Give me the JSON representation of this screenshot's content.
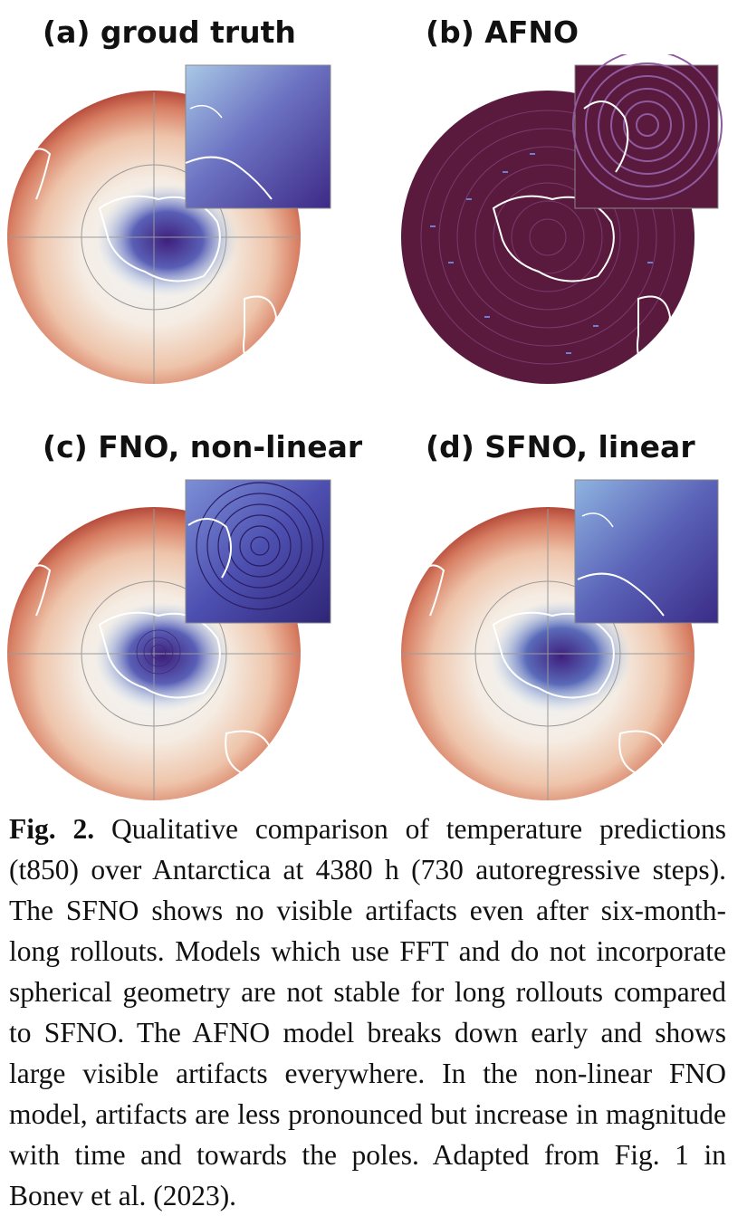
{
  "panels": {
    "a": {
      "title": "(a) groud truth"
    },
    "b": {
      "title": "(b) AFNO"
    },
    "c": {
      "title": "(c) FNO, non-linear"
    },
    "d": {
      "title": "(d) SFNO, linear"
    }
  },
  "caption": {
    "label": "Fig. 2.",
    "text": " Qualitative comparison of temperature predictions (t850) over Antarctica at 4380 h (730 autoregressive steps). The SFNO shows no visible artifacts even after six-month-long rollouts. Models which use FFT and do not incorporate spherical geometry are not stable for long rollouts compared to SFNO. The AFNO model breaks down early and shows large visible artifacts everywhere. In the non-linear FNO model, artifacts are less pronounced but increase in magnitude with time and towards the poles. Adapted from Fig. 1 in Bonev et al. (2023)."
  },
  "colors": {
    "warm_edge": "#b4493a",
    "warm_mid": "#e7a383",
    "neutral": "#f3eadf",
    "cold": "#8aaed8",
    "very_cold": "#4a2f8f",
    "afno_fill": "#5a1a3e",
    "coast": "#ffffff",
    "grid": "#9a9a9a"
  }
}
